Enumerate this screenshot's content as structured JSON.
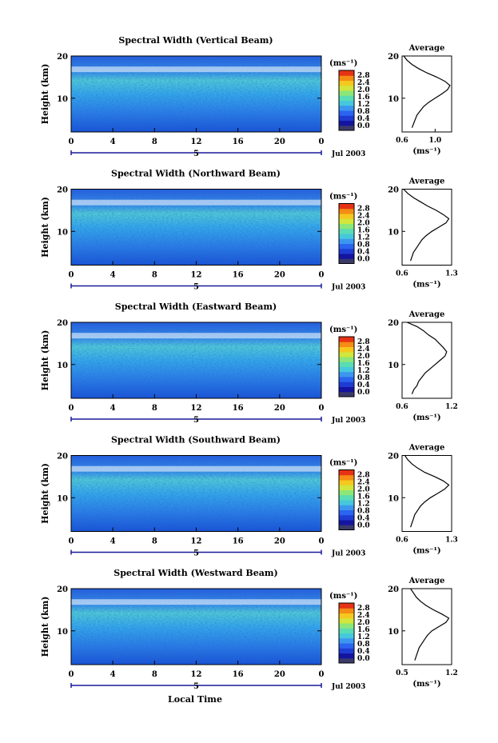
{
  "figure": {
    "xlabel": "Local Time",
    "date_label": "Jul 2003",
    "day_marker": "5",
    "colorbar_unit": "(ms⁻¹)",
    "colorbar_ticks": [
      "0.0",
      "0.4",
      "0.8",
      "1.2",
      "1.6",
      "2.0",
      "2.4",
      "2.8"
    ],
    "avg_title": "Average",
    "avg_xlabel": "(ms⁻¹)",
    "colors": {
      "colormap": [
        "#3a3a6a",
        "#1414a0",
        "#1e3cd2",
        "#2a64f0",
        "#3c96f0",
        "#46c8dc",
        "#5adcb4",
        "#8ce678",
        "#d2e63c",
        "#f5c81e",
        "#f58c14",
        "#e63214"
      ]
    }
  },
  "chart_data": [
    {
      "type": "heatmap",
      "title": "Spectral Width (Vertical Beam)",
      "ylabel": "Height (km)",
      "xlabel": "Local Time",
      "x_ticks": [
        "0",
        "4",
        "8",
        "12",
        "16",
        "20",
        "0"
      ],
      "y_ticks": [
        "10",
        "20"
      ],
      "xlim": [
        0,
        24
      ],
      "ylim": [
        2,
        20
      ],
      "colorbar": {
        "label": "(ms⁻¹)",
        "range": [
          0.0,
          2.8
        ]
      },
      "average_profile": {
        "title": "Average",
        "xlabel": "(ms⁻¹)",
        "xlim": [
          0.6,
          1.2
        ],
        "x_ticks": [
          "0.6",
          "1.0"
        ],
        "height_km": [
          3,
          4,
          5,
          6,
          7,
          8,
          9,
          10,
          11,
          12,
          13,
          14,
          15,
          16,
          17,
          18,
          19,
          20
        ],
        "width_ms": [
          0.72,
          0.74,
          0.76,
          0.78,
          0.82,
          0.86,
          0.92,
          1.0,
          1.08,
          1.15,
          1.18,
          1.12,
          1.02,
          0.9,
          0.8,
          0.72,
          0.66,
          0.62
        ]
      }
    },
    {
      "type": "heatmap",
      "title": "Spectral Width (Northward Beam)",
      "ylabel": "Height (km)",
      "xlabel": "Local Time",
      "x_ticks": [
        "0",
        "4",
        "8",
        "12",
        "16",
        "20",
        "0"
      ],
      "y_ticks": [
        "10",
        "20"
      ],
      "xlim": [
        0,
        24
      ],
      "ylim": [
        2,
        20
      ],
      "colorbar": {
        "label": "(ms⁻¹)",
        "range": [
          0.0,
          2.8
        ]
      },
      "average_profile": {
        "title": "Average",
        "xlabel": "(ms⁻¹)",
        "xlim": [
          0.6,
          1.3
        ],
        "x_ticks": [
          "0.6",
          "1.3"
        ],
        "height_km": [
          3,
          4,
          5,
          6,
          7,
          8,
          9,
          10,
          11,
          12,
          13,
          14,
          15,
          16,
          17,
          18,
          19,
          20
        ],
        "width_ms": [
          0.72,
          0.74,
          0.76,
          0.8,
          0.84,
          0.88,
          0.94,
          1.02,
          1.12,
          1.22,
          1.26,
          1.18,
          1.08,
          0.96,
          0.86,
          0.76,
          0.68,
          0.62
        ]
      }
    },
    {
      "type": "heatmap",
      "title": "Spectral Width (Eastward Beam)",
      "ylabel": "Height (km)",
      "xlabel": "Local Time",
      "x_ticks": [
        "0",
        "4",
        "8",
        "12",
        "16",
        "20",
        "0"
      ],
      "y_ticks": [
        "10",
        "20"
      ],
      "xlim": [
        0,
        24
      ],
      "ylim": [
        2,
        20
      ],
      "colorbar": {
        "label": "(ms⁻¹)",
        "range": [
          0.0,
          2.8
        ]
      },
      "average_profile": {
        "title": "Average",
        "xlabel": "(ms⁻¹)",
        "xlim": [
          0.6,
          1.2
        ],
        "x_ticks": [
          "0.6",
          "1.2"
        ],
        "height_km": [
          3,
          4,
          5,
          6,
          7,
          8,
          9,
          10,
          11,
          12,
          13,
          14,
          15,
          16,
          17,
          18,
          19,
          20
        ],
        "width_ms": [
          0.72,
          0.74,
          0.78,
          0.8,
          0.84,
          0.88,
          0.94,
          1.0,
          1.06,
          1.12,
          1.14,
          1.1,
          1.05,
          1.0,
          0.92,
          0.86,
          0.78,
          0.66
        ]
      }
    },
    {
      "type": "heatmap",
      "title": "Spectral Width (Southward Beam)",
      "ylabel": "Height (km)",
      "xlabel": "Local Time",
      "x_ticks": [
        "0",
        "4",
        "8",
        "12",
        "16",
        "20",
        "0"
      ],
      "y_ticks": [
        "10",
        "20"
      ],
      "xlim": [
        0,
        24
      ],
      "ylim": [
        2,
        20
      ],
      "colorbar": {
        "label": "(ms⁻¹)",
        "range": [
          0.0,
          2.8
        ]
      },
      "average_profile": {
        "title": "Average",
        "xlabel": "(ms⁻¹)",
        "xlim": [
          0.6,
          1.3
        ],
        "x_ticks": [
          "0.6",
          "1.3"
        ],
        "height_km": [
          3,
          4,
          5,
          6,
          7,
          8,
          9,
          10,
          11,
          12,
          13,
          14,
          15,
          16,
          17,
          18,
          19,
          20
        ],
        "width_ms": [
          0.72,
          0.74,
          0.76,
          0.78,
          0.82,
          0.86,
          0.92,
          1.0,
          1.1,
          1.2,
          1.26,
          1.18,
          1.06,
          0.92,
          0.82,
          0.74,
          0.68,
          0.64
        ]
      }
    },
    {
      "type": "heatmap",
      "title": "Spectral Width (Westward Beam)",
      "ylabel": "Height (km)",
      "xlabel": "Local Time",
      "x_ticks": [
        "0",
        "4",
        "8",
        "12",
        "16",
        "20",
        "0"
      ],
      "y_ticks": [
        "10",
        "20"
      ],
      "xlim": [
        0,
        24
      ],
      "ylim": [
        2,
        20
      ],
      "colorbar": {
        "label": "(ms⁻¹)",
        "range": [
          0.0,
          2.8
        ]
      },
      "average_profile": {
        "title": "Average",
        "xlabel": "(ms⁻¹)",
        "xlim": [
          0.5,
          1.2
        ],
        "x_ticks": [
          "0.5",
          "1.2"
        ],
        "height_km": [
          3,
          4,
          5,
          6,
          7,
          8,
          9,
          10,
          11,
          12,
          13,
          14,
          15,
          16,
          17,
          18,
          19,
          20
        ],
        "width_ms": [
          0.68,
          0.7,
          0.72,
          0.74,
          0.78,
          0.82,
          0.86,
          0.92,
          1.02,
          1.12,
          1.16,
          1.06,
          0.94,
          0.84,
          0.76,
          0.7,
          0.66,
          0.62
        ]
      }
    }
  ]
}
